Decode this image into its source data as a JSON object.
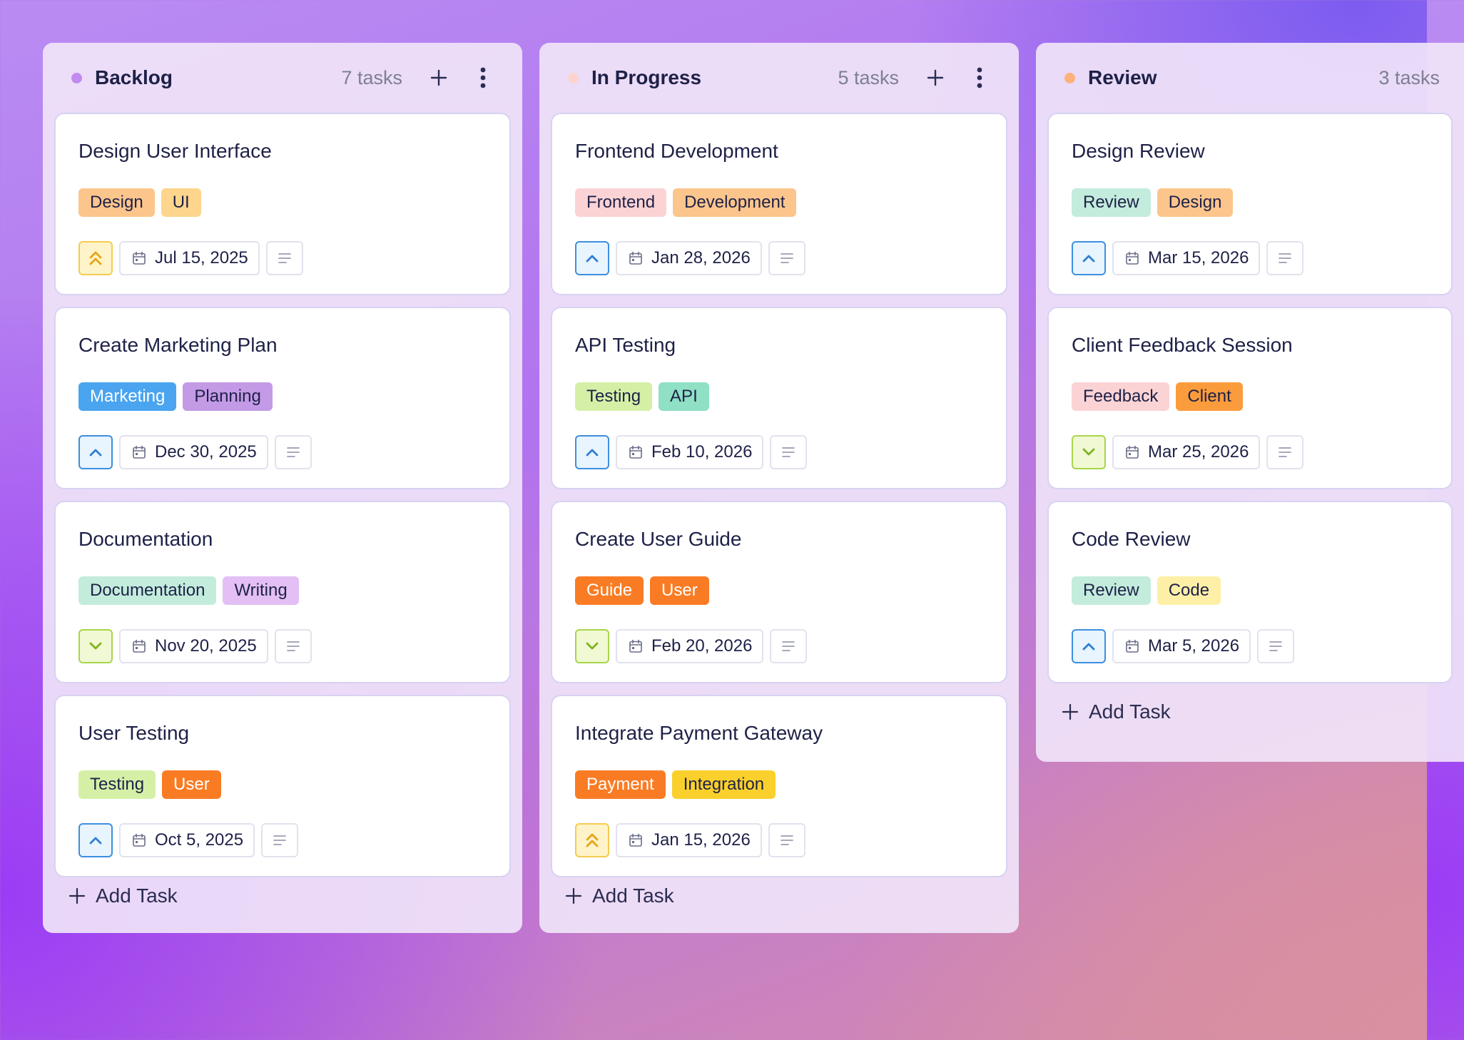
{
  "columns": [
    {
      "title": "Backlog",
      "count": "7 tasks",
      "dot_color": "#c08af0",
      "add_task": "Add Task",
      "cards": [
        {
          "title": "Design User Interface",
          "tags": [
            {
              "label": "Design",
              "bg": "#fcc58c"
            },
            {
              "label": "UI",
              "bg": "#fdd58c"
            }
          ],
          "priority": "high",
          "date": "Jul 15, 2025"
        },
        {
          "title": "Create Marketing Plan",
          "tags": [
            {
              "label": "Marketing",
              "bg": "#4aa4ef",
              "fg": "#ffffff"
            },
            {
              "label": "Planning",
              "bg": "#c39ae6"
            }
          ],
          "priority": "medium",
          "date": "Dec 30, 2025"
        },
        {
          "title": "Documentation",
          "tags": [
            {
              "label": "Documentation",
              "bg": "#c3ecdc"
            },
            {
              "label": "Writing",
              "bg": "#e3bff5"
            }
          ],
          "priority": "low",
          "date": "Nov 20, 2025"
        },
        {
          "title": "User Testing",
          "tags": [
            {
              "label": "Testing",
              "bg": "#d5f0a6"
            },
            {
              "label": "User",
              "bg": "#f97c24",
              "fg": "#ffffff"
            }
          ],
          "priority": "medium",
          "date": "Oct 5, 2025"
        }
      ]
    },
    {
      "title": "In Progress",
      "count": "5 tasks",
      "dot_color": "#fbd4d0",
      "add_task": "Add Task",
      "cards": [
        {
          "title": "Frontend Development",
          "tags": [
            {
              "label": "Frontend",
              "bg": "#fbd3d5"
            },
            {
              "label": "Development",
              "bg": "#fcc58c"
            }
          ],
          "priority": "medium",
          "date": "Jan 28, 2026"
        },
        {
          "title": "API Testing",
          "tags": [
            {
              "label": "Testing",
              "bg": "#d5f0a6"
            },
            {
              "label": "API",
              "bg": "#8fe0c5"
            }
          ],
          "priority": "medium",
          "date": "Feb 10, 2026"
        },
        {
          "title": "Create User Guide",
          "tags": [
            {
              "label": "Guide",
              "bg": "#f97c24",
              "fg": "#ffffff"
            },
            {
              "label": "User",
              "bg": "#f97c24",
              "fg": "#ffffff"
            }
          ],
          "priority": "low",
          "date": "Feb 20, 2026"
        },
        {
          "title": "Integrate Payment Gateway",
          "tags": [
            {
              "label": "Payment",
              "bg": "#f97c24",
              "fg": "#ffffff"
            },
            {
              "label": "Integration",
              "bg": "#fad02c"
            }
          ],
          "priority": "high",
          "date": "Jan 15, 2026"
        }
      ]
    },
    {
      "title": "Review",
      "count": "3 tasks",
      "dot_color": "#fcb27a",
      "add_task": "Add Task",
      "cards": [
        {
          "title": "Design Review",
          "tags": [
            {
              "label": "Review",
              "bg": "#c3ecdc"
            },
            {
              "label": "Design",
              "bg": "#fcc58c"
            }
          ],
          "priority": "medium",
          "date": "Mar 15, 2026"
        },
        {
          "title": "Client Feedback Session",
          "tags": [
            {
              "label": "Feedback",
              "bg": "#fbd3d5"
            },
            {
              "label": "Client",
              "bg": "#fb9c3c"
            }
          ],
          "priority": "low",
          "date": "Mar 25, 2026"
        },
        {
          "title": "Code Review",
          "tags": [
            {
              "label": "Review",
              "bg": "#c3ecdc"
            },
            {
              "label": "Code",
              "bg": "#fdf0a6"
            }
          ],
          "priority": "medium",
          "date": "Mar 5, 2026"
        }
      ]
    }
  ],
  "icons": {
    "add": "plus-icon",
    "menu": "kebab-menu-icon",
    "calendar": "calendar-icon",
    "description": "description-lines-icon",
    "priority_high": "double-chevron-up-icon",
    "priority_medium": "chevron-up-icon",
    "priority_low": "chevron-down-icon"
  }
}
